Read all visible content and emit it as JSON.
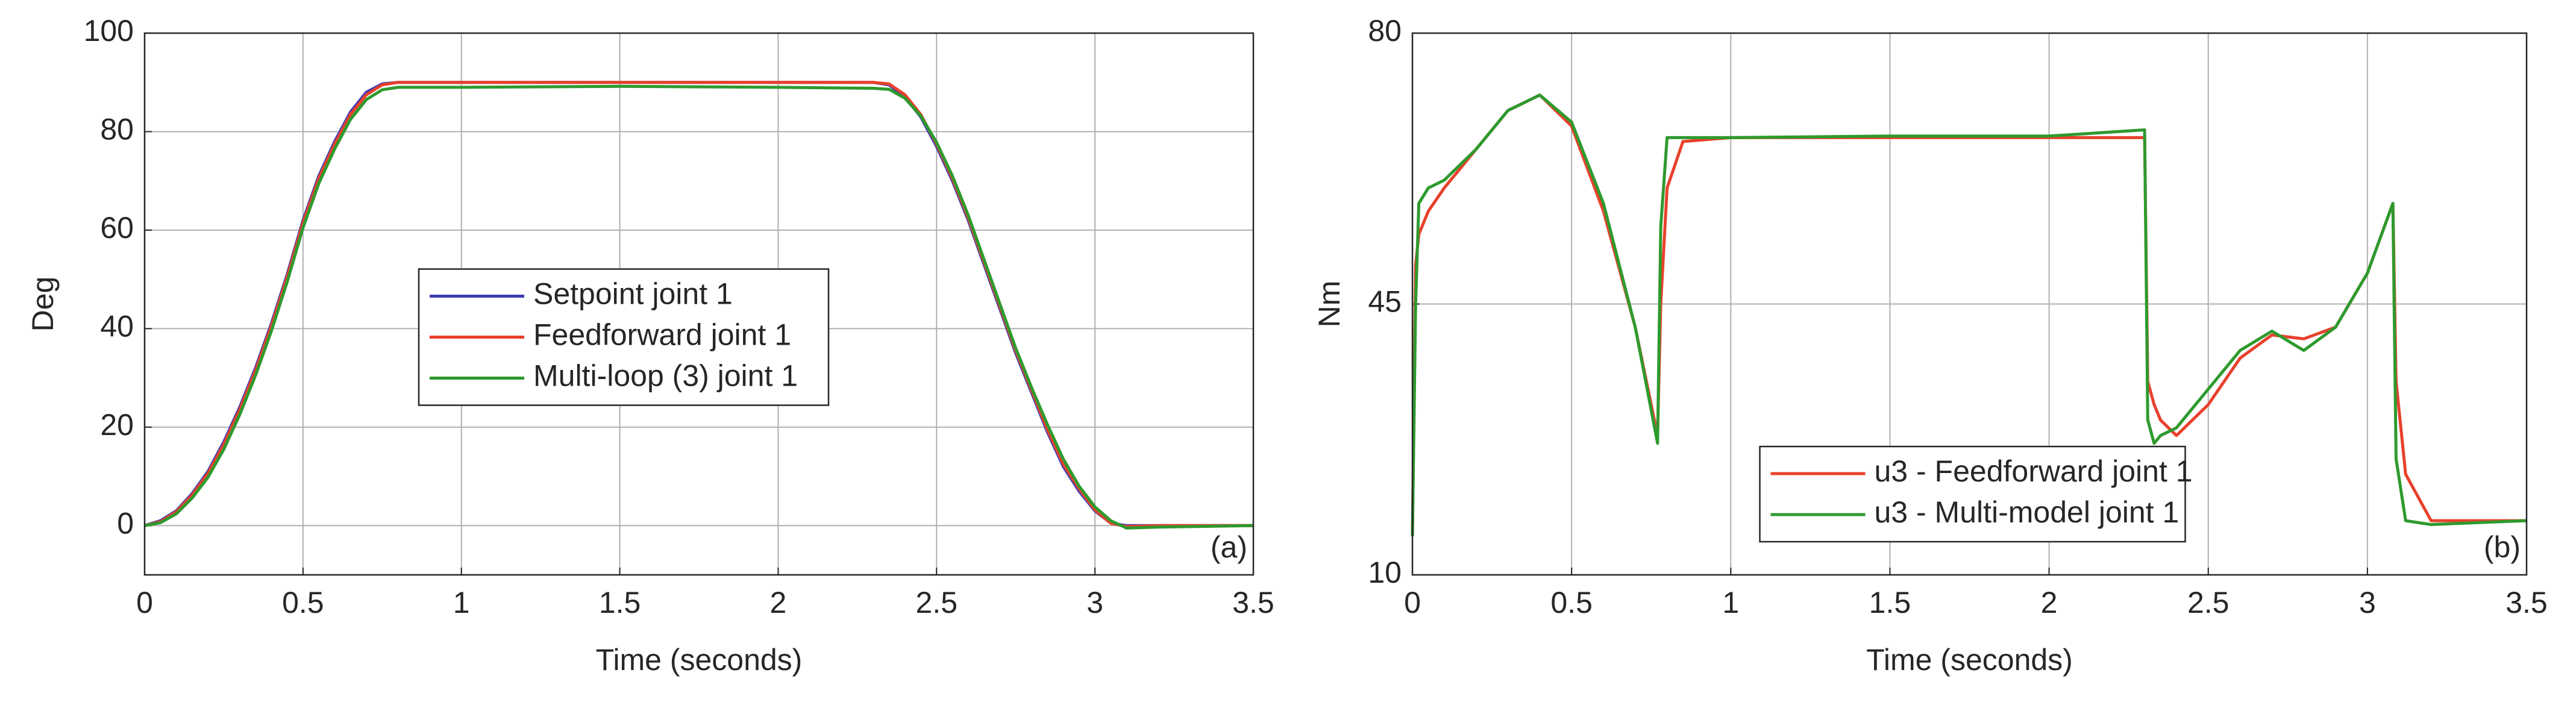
{
  "chart_data": [
    {
      "type": "line",
      "xlabel": "Time (seconds)",
      "ylabel": "Deg",
      "annotation": "(a)",
      "x": [
        0,
        0.05,
        0.1,
        0.15,
        0.2,
        0.25,
        0.3,
        0.35,
        0.4,
        0.45,
        0.5,
        0.55,
        0.6,
        0.65,
        0.7,
        0.75,
        0.8,
        1,
        1.5,
        2,
        2.3,
        2.35,
        2.4,
        2.45,
        2.5,
        2.55,
        2.6,
        2.65,
        2.7,
        2.75,
        2.8,
        2.85,
        2.9,
        2.95,
        3,
        3.05,
        3.1,
        3.2,
        3.5
      ],
      "xlim": [
        0,
        3.5
      ],
      "xticks": [
        0,
        0.5,
        1,
        1.5,
        2,
        2.5,
        3,
        3.5
      ],
      "ylim": [
        -10,
        100
      ],
      "yticks": [
        0,
        20,
        40,
        60,
        80,
        100
      ],
      "grid": true,
      "legend": "center",
      "series": [
        {
          "name": "Setpoint joint 1",
          "color": "#3c3cb4",
          "values": [
            0,
            1,
            3,
            6.5,
            11,
            17,
            24,
            32,
            41,
            51,
            62,
            71,
            78,
            84,
            88,
            89.7,
            90,
            90,
            90,
            90,
            90,
            89.5,
            87,
            83,
            77,
            70,
            62,
            53,
            44,
            35,
            27,
            19,
            12,
            7,
            3,
            0.5,
            0,
            0,
            0
          ]
        },
        {
          "name": "Feedforward joint 1",
          "color": "#e8412c",
          "values": [
            0,
            0.8,
            2.8,
            6.2,
            10.6,
            16.5,
            23.5,
            31.5,
            40.5,
            50.5,
            61.5,
            70.5,
            77.5,
            83.5,
            87.5,
            89.5,
            90,
            90,
            90,
            90,
            90,
            89.7,
            87.5,
            83.5,
            77.5,
            70.5,
            62.5,
            53.5,
            44.5,
            35.5,
            27.5,
            19.5,
            12.5,
            7.5,
            3.2,
            0.5,
            -0.2,
            0,
            0
          ]
        },
        {
          "name": "Multi-loop (3) joint 1",
          "color": "#2e9a2e",
          "values": [
            0,
            0.6,
            2.4,
            5.6,
            9.8,
            15.5,
            22.5,
            30.5,
            39.5,
            49.5,
            60.5,
            69.5,
            76.5,
            82.5,
            86.5,
            88.5,
            89,
            89,
            89.2,
            89,
            88.8,
            88.6,
            86.8,
            83.2,
            77.8,
            71,
            63,
            54,
            45,
            36,
            28,
            20.5,
            13.5,
            8,
            3.8,
            1,
            -0.5,
            -0.3,
            0
          ]
        }
      ]
    },
    {
      "type": "line",
      "xlabel": "Time (seconds)",
      "ylabel": "Nm",
      "annotation": "(b)",
      "x": [
        0,
        0.01,
        0.02,
        0.05,
        0.1,
        0.2,
        0.3,
        0.4,
        0.5,
        0.6,
        0.7,
        0.77,
        0.78,
        0.8,
        0.85,
        1,
        1.5,
        2,
        2.3,
        2.31,
        2.33,
        2.35,
        2.4,
        2.5,
        2.6,
        2.7,
        2.8,
        2.9,
        3,
        3.08,
        3.09,
        3.12,
        3.2,
        3.5
      ],
      "xlim": [
        0,
        3.5
      ],
      "xticks": [
        0,
        0.5,
        1,
        1.5,
        2,
        2.5,
        3,
        3.5
      ],
      "ylim": [
        10,
        80
      ],
      "yticks": [
        10,
        45,
        80
      ],
      "grid": true,
      "legend": "lower center",
      "series": [
        {
          "name": "u3 - Feedforward joint 1",
          "color": "#e8412c",
          "values": [
            15,
            50,
            54,
            57,
            60,
            65,
            70,
            72,
            68,
            57,
            42,
            28,
            45,
            60,
            66,
            66.5,
            66.5,
            66.5,
            66.5,
            35,
            32,
            30,
            28,
            32,
            38,
            41,
            40.5,
            42,
            49,
            58,
            35,
            23,
            17,
            17
          ]
        },
        {
          "name": "u3 - Multi-model joint 1",
          "color": "#2e9a2e",
          "values": [
            15,
            45,
            58,
            60,
            61,
            65,
            70,
            72,
            68.5,
            58,
            42,
            27,
            55,
            66.5,
            66.5,
            66.5,
            66.7,
            66.7,
            67.5,
            30,
            27,
            28,
            29,
            34,
            39,
            41.5,
            39,
            42,
            49,
            58,
            25,
            17,
            16.5,
            17
          ]
        }
      ]
    }
  ]
}
